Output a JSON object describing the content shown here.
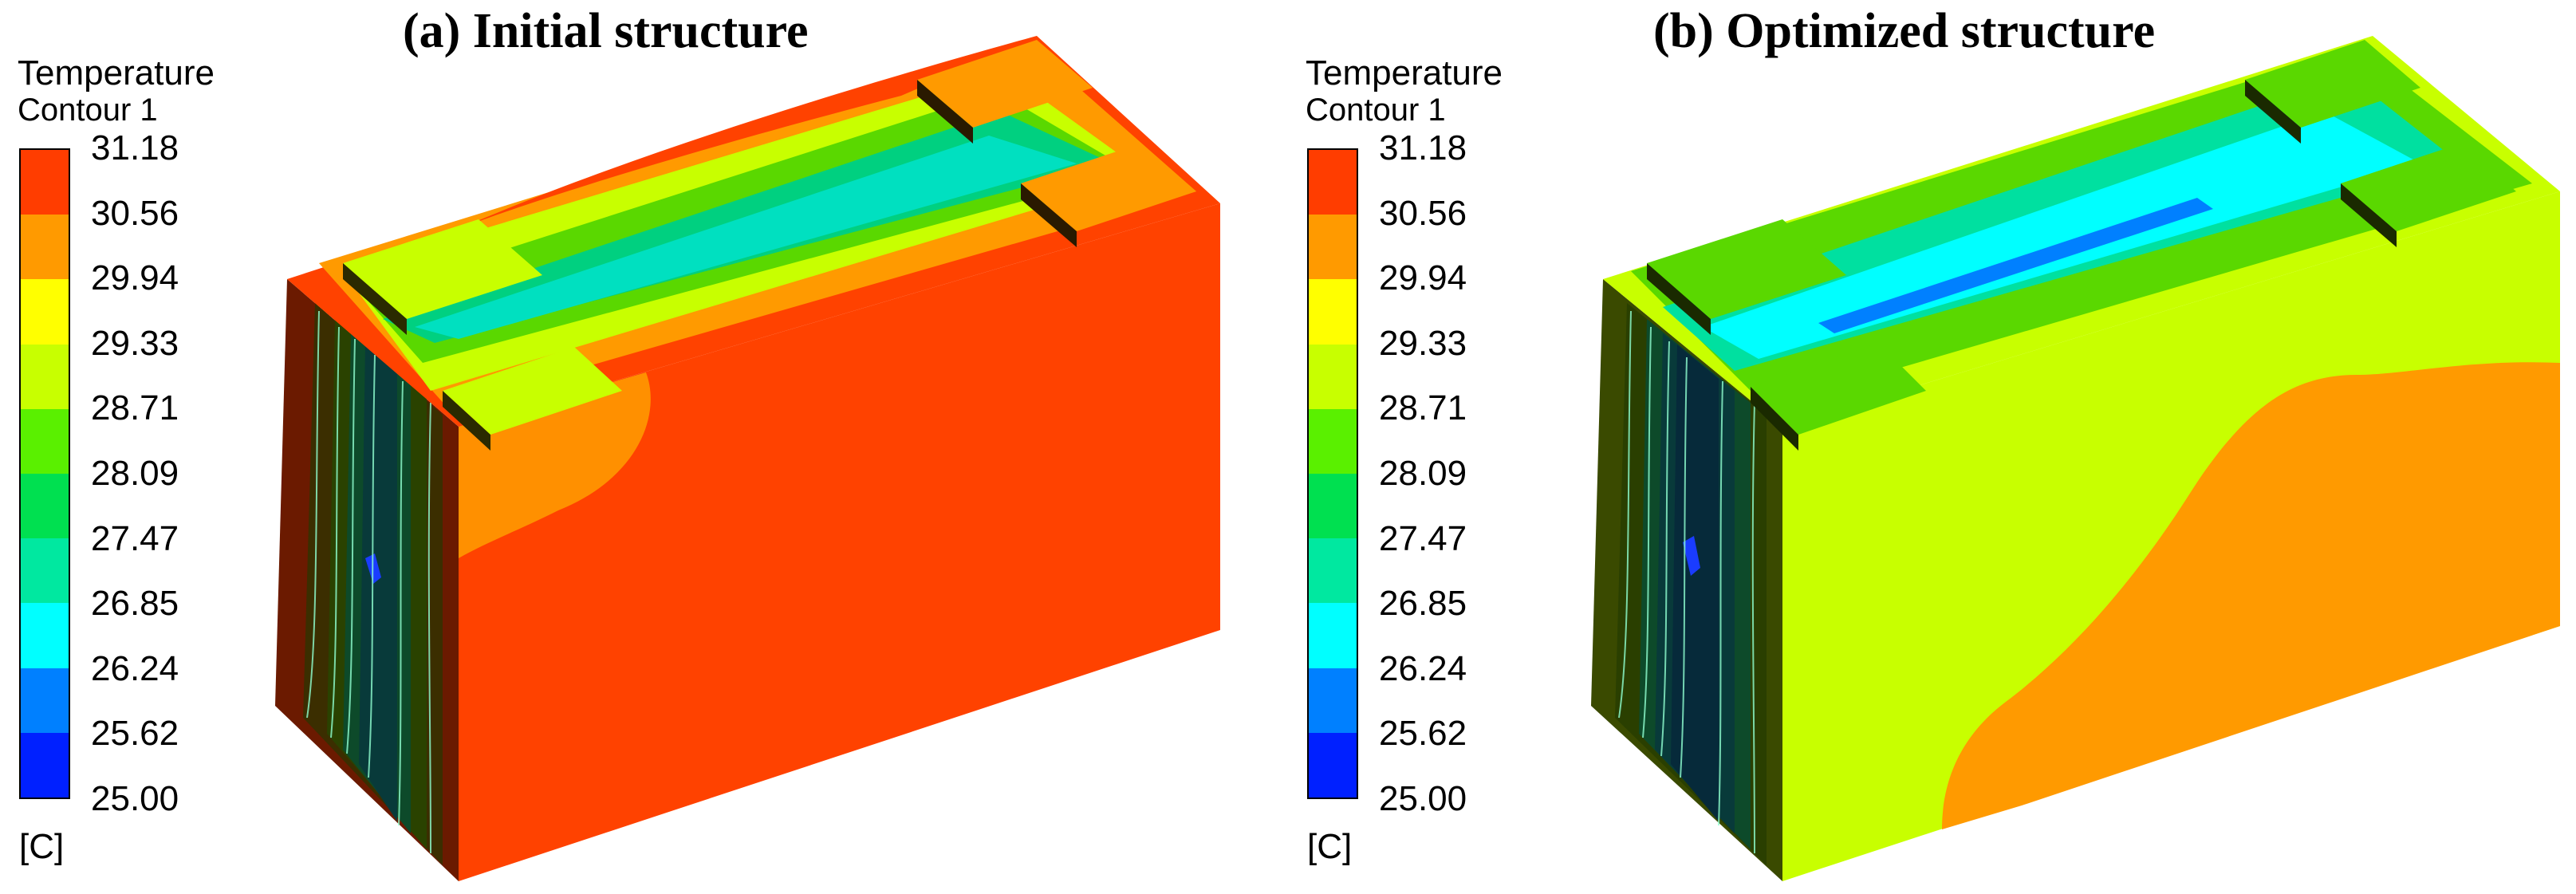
{
  "panels": [
    {
      "title": "(a) Initial structure",
      "legend": {
        "title": "Temperature",
        "subtitle": "Contour 1",
        "unit": "[C]",
        "ticks": [
          "31.18",
          "30.56",
          "29.94",
          "29.33",
          "28.71",
          "28.09",
          "27.47",
          "26.85",
          "26.24",
          "25.62",
          "25.00"
        ],
        "colors": [
          "#ff3d00",
          "#ff9a00",
          "#ffff00",
          "#c8ff00",
          "#5af000",
          "#00e050",
          "#00e8a0",
          "#00ffff",
          "#0080ff",
          "#0020ff"
        ]
      }
    },
    {
      "title": "(b) Optimized structure",
      "legend": {
        "title": "Temperature",
        "subtitle": "Contour 1",
        "unit": "[C]",
        "ticks": [
          "31.18",
          "30.56",
          "29.94",
          "29.33",
          "28.71",
          "28.09",
          "27.47",
          "26.85",
          "26.24",
          "25.62",
          "25.00"
        ],
        "colors": [
          "#ff3d00",
          "#ff9a00",
          "#ffff00",
          "#c8ff00",
          "#5af000",
          "#00e050",
          "#00e8a0",
          "#00ffff",
          "#0080ff",
          "#0020ff"
        ]
      }
    }
  ]
}
